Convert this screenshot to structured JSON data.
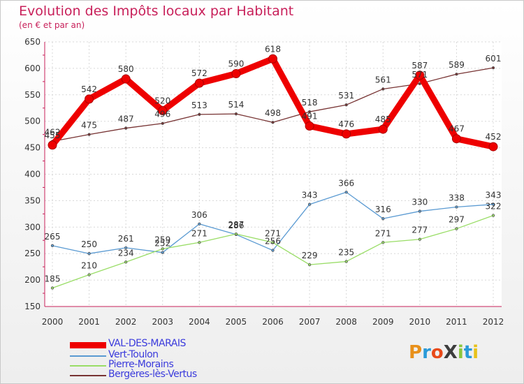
{
  "title": "Evolution des Impôts locaux par Habitant",
  "subtitle": "(en € et par an)",
  "logo": {
    "text": "ProXiti",
    "letters": [
      "P",
      "r",
      "o",
      "X",
      "i",
      "t",
      "i"
    ],
    "colors": [
      "#e8901a",
      "#2a9ad8",
      "#e84a1a",
      "#3d3d3d",
      "#8bc63e",
      "#2a9ad8",
      "#e8c21a"
    ]
  },
  "chart_data": {
    "type": "line",
    "title": "Evolution des Impôts locaux par Habitant",
    "subtitle": "(en € et par an)",
    "xlabel": "",
    "ylabel": "",
    "x": [
      "2000",
      "2001",
      "2002",
      "2003",
      "2004",
      "2005",
      "2006",
      "2007",
      "2008",
      "2009",
      "2010",
      "2011",
      "2012"
    ],
    "ylim": [
      150,
      650
    ],
    "yticks": [
      "150",
      "200",
      "250",
      "300",
      "350",
      "400",
      "450",
      "500",
      "550",
      "600",
      "650"
    ],
    "grid": true,
    "legend_position": "bottom-left",
    "series": [
      {
        "name": "VAL-DES-MARAIS",
        "color": "#ee0000",
        "width": 9,
        "marker": 10,
        "values": [
          455,
          542,
          580,
          520,
          572,
          590,
          618,
          491,
          476,
          485,
          587,
          467,
          452
        ],
        "labels": [
          "455",
          "542",
          "580",
          "520",
          "572",
          "590",
          "618",
          "491",
          "476",
          "485",
          "587",
          "467",
          "452"
        ]
      },
      {
        "name": "Vert-Toulon",
        "color": "#5a9ad2",
        "width": 1.3,
        "marker": 3.5,
        "values": [
          265,
          250,
          261,
          252,
          306,
          286,
          256,
          343,
          366,
          316,
          330,
          338,
          343
        ],
        "labels": [
          "265",
          "250",
          "261",
          "252",
          "306",
          "286",
          "256",
          "343",
          "366",
          "316",
          "330",
          "338",
          "343"
        ]
      },
      {
        "name": "Pierre-Morains",
        "color": "#99dd66",
        "width": 1.3,
        "marker": 3.5,
        "values": [
          185,
          210,
          234,
          259,
          271,
          287,
          271,
          229,
          235,
          271,
          277,
          297,
          322
        ],
        "labels": [
          "185",
          "210",
          "234",
          "259",
          "271",
          "287",
          "271",
          "229",
          "235",
          "271",
          "277",
          "297",
          "322"
        ]
      },
      {
        "name": "Bergères-lès-Vertus",
        "color": "#773333",
        "width": 1.3,
        "marker": 3.5,
        "values": [
          462,
          475,
          487,
          496,
          513,
          514,
          498,
          518,
          531,
          561,
          571,
          589,
          601
        ],
        "labels": [
          "462",
          "475",
          "487",
          "496",
          "513",
          "514",
          "498",
          "518",
          "531",
          "561",
          "571",
          "589",
          "601"
        ]
      }
    ]
  }
}
